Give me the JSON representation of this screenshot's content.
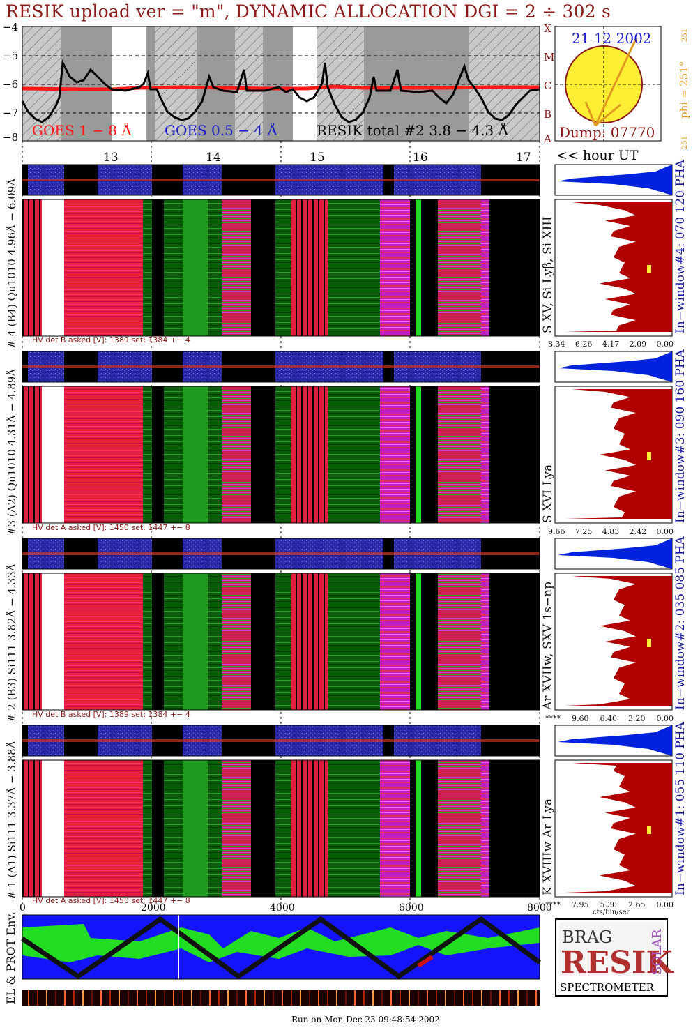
{
  "title": "RESIK upload ver = \"m\", DYNAMIC ALLOCATION  DGI =   2 ÷ 302 s",
  "colors": {
    "title": "#8b1a1a",
    "goes_long": "#ff1a1a",
    "goes_short": "#1a1acc",
    "flux": "#000000",
    "spectrum_red": "#b00000",
    "spectrum_blue": "#0022dd",
    "sun": "#ffee33",
    "orbit_bg": "#1414ff",
    "orbit_green": "#22dd22"
  },
  "goes": {
    "ytick_labels": [
      "−4",
      "−5",
      "−6",
      "−7",
      "−8"
    ],
    "class_labels": [
      "X",
      "M",
      "C",
      "B",
      "A"
    ],
    "legend_long": "GOES 1 − 8 Å",
    "legend_short": "GOES 0.5 − 4 Å",
    "legend_resik": "RESIK total #2  3.8 − 4.3 Å"
  },
  "sun": {
    "date": "21 12 2002",
    "phi_label": "phi = 251°",
    "phi_small_top": "251",
    "phi_small_bottom": "251",
    "dump": "Dump: 07770"
  },
  "hours": {
    "labels": [
      "13",
      "14",
      "15",
      "16",
      "17"
    ],
    "unit_label": "<< hour UT"
  },
  "channels": [
    {
      "ylabel": "# 4 (B4) Qu1010 4.96Å − 6.09Å",
      "hv": "HV det B asked [V]:  1389 set:  1384  +−    4",
      "ions": "S XV, Si Lyβ, Si XIII",
      "window": "In−window#4:  070 120 PHA",
      "xticks": [
        "8.34",
        "6.26",
        "4.17",
        "2.09",
        "0.00"
      ]
    },
    {
      "ylabel": "#3 (A2) Qu1010  4.31Å − 4.89Å",
      "hv": "HV det A asked [V]:  1450 set:  1447  +−    8",
      "ions": "S XVI Lya",
      "window": "In−window#3:  090 160 PHA",
      "xticks": [
        "9.66",
        "7.25",
        "4.83",
        "2.42",
        "0.00"
      ]
    },
    {
      "ylabel": "# 2 (B3) Si111  3.82Å − 4.33Å",
      "hv": "HV det B asked [V]:  1389 set:  1384  +−    4",
      "ions": "Ar XVIIw,  SXV  1s−np",
      "window": "In−window#2:  035 085 PHA",
      "xticks": [
        "****",
        "9.60",
        "6.40",
        "3.20",
        "0.00"
      ]
    },
    {
      "ylabel": "# 1 (A1) Si111  3.37Å − 3.88Å",
      "hv": "HV det A asked [V]:  1450 set:  1447  +−    8",
      "ions": "K XVIIIw  Ar Lya",
      "window": "In−window#1:  055 110 PHA",
      "xticks": [
        "****",
        "7.95",
        "5.30",
        "2.65",
        "0.00"
      ],
      "xunit": "cts/bin/sec"
    }
  ],
  "seconds_axis": [
    "0",
    "2000",
    "4000",
    "6000",
    "8000"
  ],
  "orbit_label": "EL & PROT Env.",
  "logo": {
    "l1": "BRAG",
    "l2": "RESIK",
    "l3": "SOLAR",
    "l4": "SPECTROMETER"
  },
  "footer": "Run on Mon Dec 23 09:48:54 2002"
}
